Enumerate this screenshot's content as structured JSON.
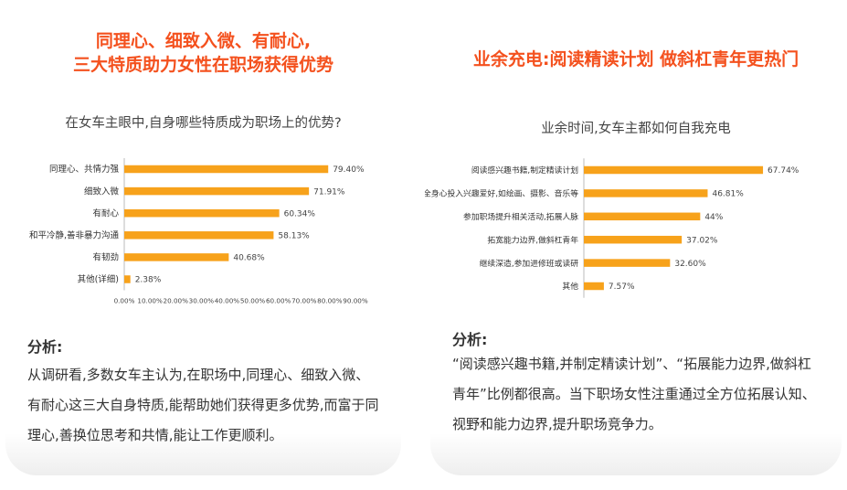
{
  "left": {
    "headline_line1": "同理心、细致入微、有耐心,",
    "headline_line2": "三大特质助力女性在职场获得优势",
    "question": "在女车主眼中,自身哪些特质成为职场上的优势?",
    "analysis_title": "分析:",
    "analysis_text": "从调研看,多数女车主认为,在职场中,同理心、细致入微、有耐心这三大自身特质,能帮助她们获得更多优势,而富于同理心,善换位思考和共情,能让工作更顺利。"
  },
  "right": {
    "headline": "业余充电:阅读精读计划 做斜杠青年更热门",
    "question": "业余时间,女车主都如何自我充电",
    "analysis_title": "分析:",
    "analysis_text": "“阅读感兴趣书籍,并制定精读计划”、“拓展能力边界,做斜杠青年”比例都很高。当下职场女性注重通过全方位拓展认知、视野和能力边界,提升职场竞争力。"
  },
  "colors": {
    "bar": "#f7a21b",
    "accent": "#f4511e"
  },
  "chart_data": [
    {
      "type": "bar",
      "orientation": "horizontal",
      "categories": [
        "同理心、共情力强",
        "细致入微",
        "有耐心",
        "和平冷静,善非暴力沟通",
        "有韧劲",
        "其他(详细)"
      ],
      "values": [
        79.4,
        71.91,
        60.34,
        58.13,
        40.68,
        2.38
      ],
      "value_labels": [
        "79.40%",
        "71.91%",
        "60.34%",
        "58.13%",
        "40.68%",
        "2.38%"
      ],
      "xlim": [
        0,
        90
      ],
      "xticks": [
        "0.00%",
        "10.00%",
        "20.00%",
        "30.00%",
        "40.00%",
        "50.00%",
        "60.00%",
        "70.00%",
        "80.00%",
        "90.00%"
      ],
      "grid": false
    },
    {
      "type": "bar",
      "orientation": "horizontal",
      "categories": [
        "阅读感兴趣书籍,制定精读计划",
        "全身心投入兴趣爱好,如绘画、摄影、音乐等",
        "参加职场提升相关活动,拓展人脉",
        "拓宽能力边界,做斜杠青年",
        "继续深造,参加进修班或读研",
        "其他"
      ],
      "values": [
        67.74,
        46.81,
        44,
        37.02,
        32.6,
        7.57
      ],
      "value_labels": [
        "67.74%",
        "46.81%",
        "44%",
        "37.02%",
        "32.60%",
        "7.57%"
      ],
      "xlim": [
        0,
        85
      ],
      "grid": false
    }
  ]
}
